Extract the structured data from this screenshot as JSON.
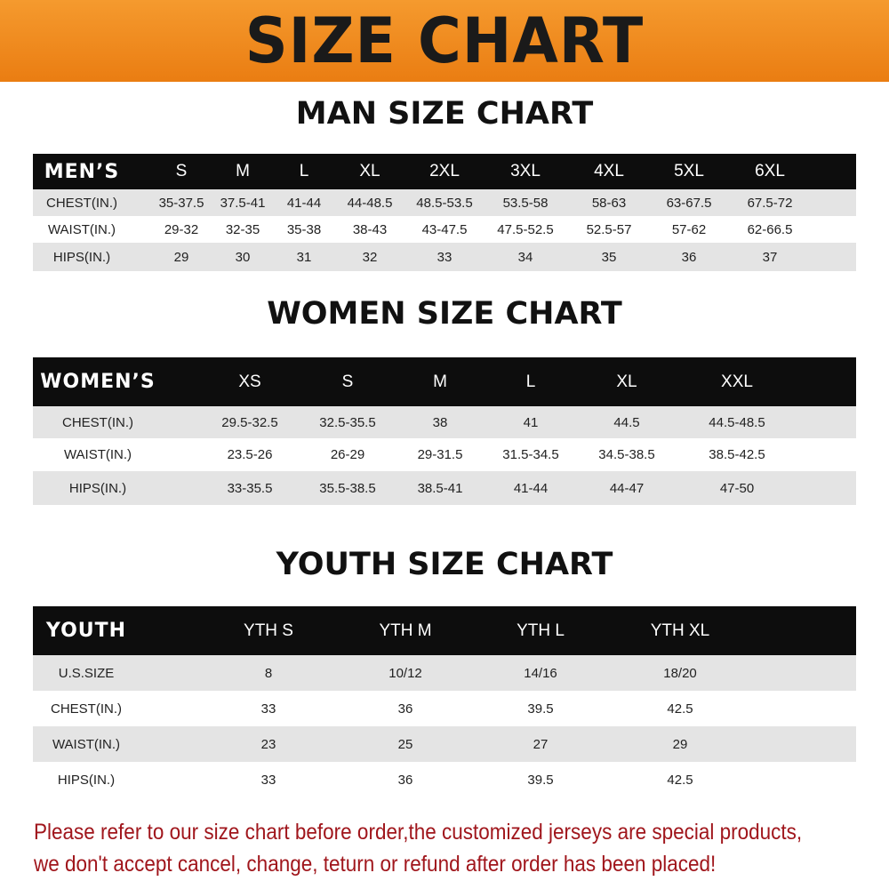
{
  "banner_title": "SIZE CHART",
  "tables": [
    {
      "title": "MAN SIZE CHART",
      "header": [
        "MEN’S",
        "S",
        "M",
        "L",
        "XL",
        "2XL",
        "3XL",
        "4XL",
        "5XL",
        "6XL"
      ],
      "rows": [
        [
          "CHEST(IN.)",
          "35-37.5",
          "37.5-41",
          "41-44",
          "44-48.5",
          "48.5-53.5",
          "53.5-58",
          "58-63",
          "63-67.5",
          "67.5-72"
        ],
        [
          "WAIST(IN.)",
          "29-32",
          "32-35",
          "35-38",
          "38-43",
          "43-47.5",
          "47.5-52.5",
          "52.5-57",
          "57-62",
          "62-66.5"
        ],
        [
          "HIPS(IN.)",
          "29",
          "30",
          "31",
          "32",
          "33",
          "34",
          "35",
          "36",
          "37"
        ]
      ]
    },
    {
      "title": "WOMEN SIZE CHART",
      "header": [
        "WOMEN’S",
        "XS",
        "S",
        "M",
        "L",
        "XL",
        "XXL"
      ],
      "rows": [
        [
          "CHEST(IN.)",
          "29.5-32.5",
          "32.5-35.5",
          "38",
          "41",
          "44.5",
          "44.5-48.5"
        ],
        [
          "WAIST(IN.)",
          "23.5-26",
          "26-29",
          "29-31.5",
          "31.5-34.5",
          "34.5-38.5",
          "38.5-42.5"
        ],
        [
          "HIPS(IN.)",
          "33-35.5",
          "35.5-38.5",
          "38.5-41",
          "41-44",
          "44-47",
          "47-50"
        ]
      ]
    },
    {
      "title": "YOUTH SIZE CHART",
      "header": [
        "YOUTH",
        "YTH S",
        "YTH M",
        "YTH L",
        "YTH XL"
      ],
      "rows": [
        [
          "U.S.SIZE",
          "8",
          "10/12",
          "14/16",
          "18/20"
        ],
        [
          "CHEST(IN.)",
          "33",
          "36",
          "39.5",
          "42.5"
        ],
        [
          "WAIST(IN.)",
          "23",
          "25",
          "27",
          "29"
        ],
        [
          "HIPS(IN.)",
          "33",
          "36",
          "39.5",
          "42.5"
        ]
      ]
    }
  ],
  "notice": [
    "Please refer to our size chart before order,the customized jerseys are special products,",
    "we don't accept cancel, change, teturn or refund after order has been placed!"
  ],
  "colors": {
    "banner": "#f08a1e",
    "header_row": "#0d0d0d",
    "stripe": "#e4e4e4",
    "notice": "#a0161c"
  }
}
